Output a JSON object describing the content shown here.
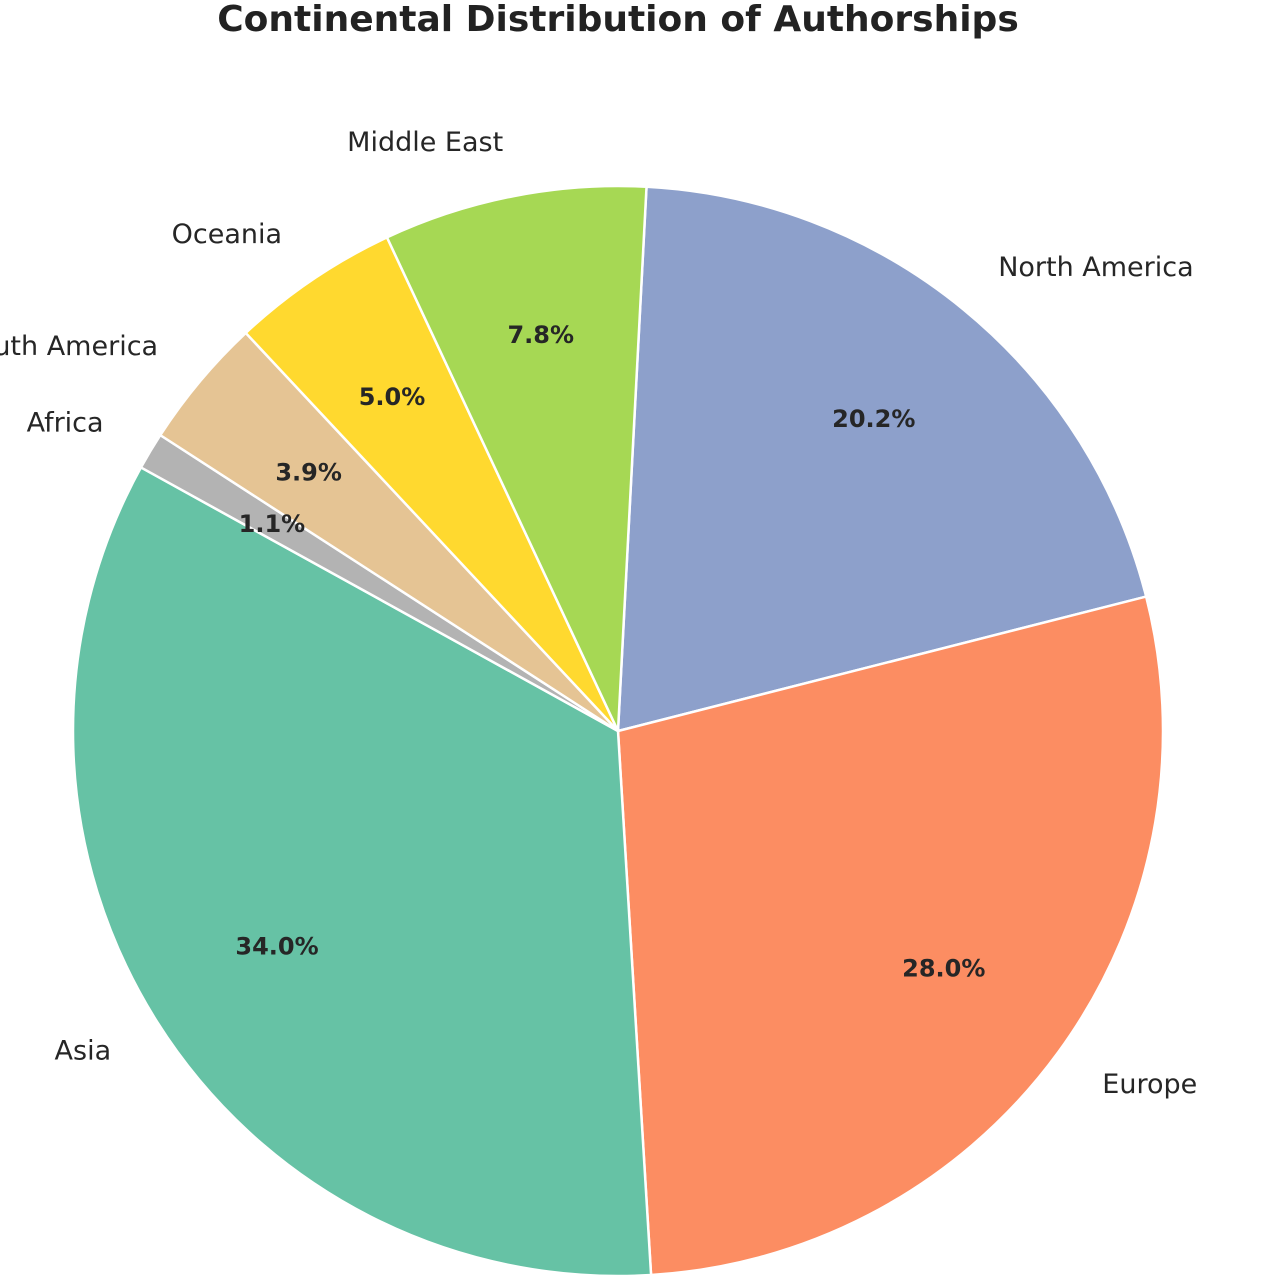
{
  "chart_data": {
    "type": "pie",
    "title": "Continental Distribution of Authorships",
    "slices": [
      {
        "label": "North America",
        "value": 20.2,
        "pct_label": "20.2%",
        "color": "#8da0cb"
      },
      {
        "label": "Europe",
        "value": 28.0,
        "pct_label": "28.0%",
        "color": "#fc8d62"
      },
      {
        "label": "Asia",
        "value": 34.0,
        "pct_label": "34.0%",
        "color": "#66c2a5"
      },
      {
        "label": "Africa",
        "value": 1.1,
        "pct_label": "1.1%",
        "color": "#b3b3b3"
      },
      {
        "label": "South America",
        "value": 3.9,
        "pct_label": "3.9%",
        "color": "#e5c494"
      },
      {
        "label": "Oceania",
        "value": 5.0,
        "pct_label": "5.0%",
        "color": "#ffd92f"
      },
      {
        "label": "Middle East",
        "value": 7.8,
        "pct_label": "7.8%",
        "color": "#a6d854"
      }
    ],
    "legend": "none"
  }
}
